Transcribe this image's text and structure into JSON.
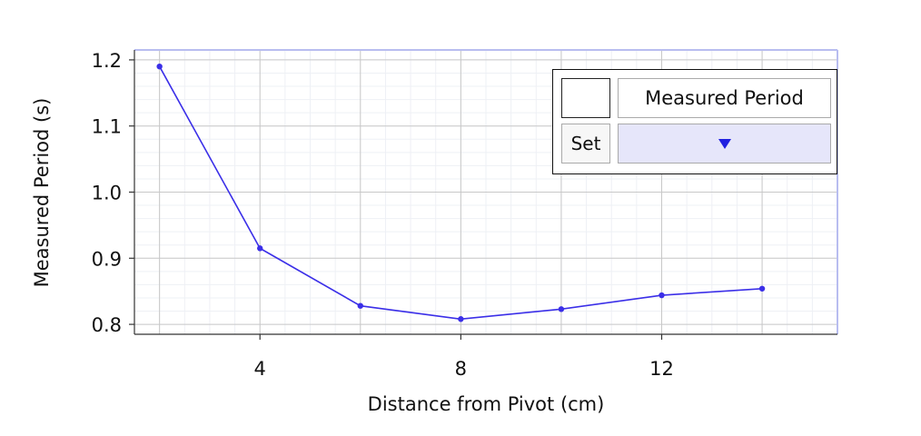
{
  "chart_data": {
    "type": "line",
    "xlabel": "Distance from Pivot (cm)",
    "ylabel": "Measured Period (s)",
    "xlim": [
      1.5,
      15.5
    ],
    "ylim": [
      0.785,
      1.215
    ],
    "x_ticks": [
      4,
      8,
      12
    ],
    "y_ticks": [
      0.8,
      0.9,
      1.0,
      1.1,
      1.2
    ],
    "x_tick_labels": [
      "4",
      "8",
      "12"
    ],
    "y_tick_labels": [
      "0.8",
      "0.9",
      "1.0",
      "1.1",
      "1.2"
    ],
    "grid": true,
    "legend_position": "top-right",
    "series": [
      {
        "name": "Measured Period",
        "color": "#3b2fe8",
        "x": [
          2,
          4,
          6,
          8,
          10,
          12,
          14
        ],
        "y": [
          1.19,
          0.915,
          0.828,
          0.808,
          0.823,
          0.844,
          0.854
        ]
      }
    ]
  },
  "legend": {
    "series_label": "Measured Period",
    "set_label": "Set"
  }
}
